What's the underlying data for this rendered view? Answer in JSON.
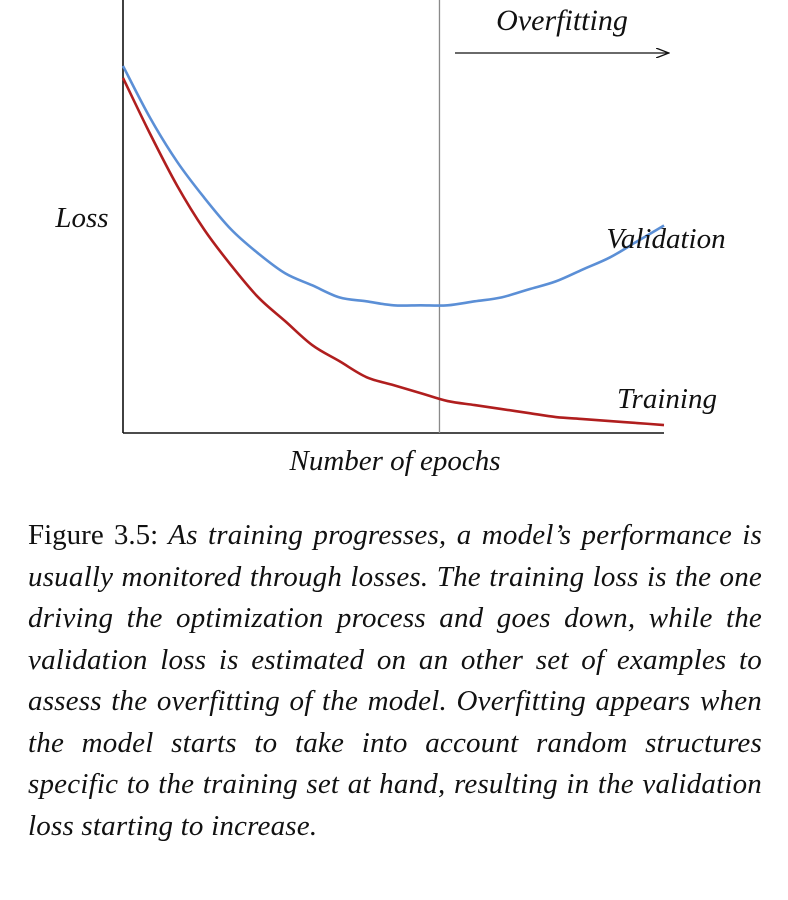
{
  "chart_data": {
    "type": "line",
    "xlabel": "Number of epochs",
    "ylabel": "Loss",
    "annotation": "Overfitting",
    "grid": false,
    "x": [
      0,
      0.05,
      0.1,
      0.15,
      0.2,
      0.25,
      0.3,
      0.35,
      0.4,
      0.45,
      0.5,
      0.55,
      0.6,
      0.65,
      0.7,
      0.75,
      0.8,
      0.85,
      0.9,
      0.95,
      1.0
    ],
    "xlim": [
      0,
      1
    ],
    "ylim": [
      0,
      1
    ],
    "series": [
      {
        "name": "Validation",
        "color": "#5b8fd6",
        "values": [
          0.92,
          0.79,
          0.68,
          0.59,
          0.51,
          0.45,
          0.4,
          0.37,
          0.34,
          0.33,
          0.32,
          0.32,
          0.32,
          0.33,
          0.34,
          0.36,
          0.38,
          0.41,
          0.44,
          0.48,
          0.52
        ]
      },
      {
        "name": "Training",
        "color": "#b01e1e",
        "values": [
          0.89,
          0.75,
          0.62,
          0.51,
          0.42,
          0.34,
          0.28,
          0.22,
          0.18,
          0.14,
          0.12,
          0.1,
          0.08,
          0.07,
          0.06,
          0.05,
          0.04,
          0.035,
          0.03,
          0.025,
          0.02
        ]
      }
    ],
    "marker_x": 0.585
  },
  "caption": {
    "label": "Figure 3.5:",
    "text": "As training progresses, a model’s perfor­mance is usually monitored through losses. The train­ing loss is the one driving the optimization process and goes down, while the validation loss is estimated on an other set of examples to assess the overfitting of the model. Overfitting appears when the model starts to take into account random structures specific to the training set at hand, resulting in the validation loss starting to increase."
  }
}
